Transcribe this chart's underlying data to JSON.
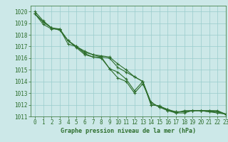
{
  "title": "Graphe pression niveau de la mer (hPa)",
  "bg_color": "#cce8e8",
  "grid_color": "#99cccc",
  "line_color": "#2d6e2d",
  "xlim": [
    -0.5,
    23
  ],
  "ylim": [
    1011,
    1020.5
  ],
  "yticks": [
    1011,
    1012,
    1013,
    1014,
    1015,
    1016,
    1017,
    1018,
    1019,
    1020
  ],
  "xticks": [
    0,
    1,
    2,
    3,
    4,
    5,
    6,
    7,
    8,
    9,
    10,
    11,
    12,
    13,
    14,
    15,
    16,
    17,
    18,
    19,
    20,
    21,
    22,
    23
  ],
  "series": [
    [
      1020.0,
      1019.2,
      1018.6,
      1018.5,
      1017.2,
      1017.0,
      1016.4,
      1016.1,
      1016.1,
      1015.1,
      1014.3,
      1014.0,
      1013.0,
      1013.8,
      1012.2,
      1011.8,
      1011.5,
      1011.3,
      1011.5,
      1011.5,
      1011.5,
      1011.4,
      1011.3,
      1011.2
    ],
    [
      1019.8,
      1019.1,
      1018.6,
      1018.4,
      1017.5,
      1016.9,
      1016.3,
      1016.1,
      1016.0,
      1015.1,
      1014.8,
      1014.2,
      1013.2,
      1014.0,
      1012.0,
      1011.9,
      1011.6,
      1011.3,
      1011.3,
      1011.5,
      1011.5,
      1011.5,
      1011.4,
      1011.2
    ],
    [
      1019.8,
      1019.1,
      1018.6,
      1018.4,
      1017.5,
      1017.0,
      1016.5,
      1016.3,
      1016.2,
      1016.1,
      1015.5,
      1015.0,
      1014.4,
      1014.0,
      1012.2,
      1011.8,
      1011.6,
      1011.4,
      1011.4,
      1011.5,
      1011.5,
      1011.5,
      1011.5,
      1011.2
    ],
    [
      1019.8,
      1018.9,
      1018.5,
      1018.5,
      1017.5,
      1017.0,
      1016.6,
      1016.3,
      1016.1,
      1016.0,
      1015.2,
      1014.8,
      1014.4,
      1014.0,
      1012.0,
      1011.9,
      1011.5,
      1011.4,
      1011.4,
      1011.5,
      1011.5,
      1011.4,
      1011.4,
      1011.2
    ]
  ],
  "figsize": [
    3.2,
    2.0
  ],
  "dpi": 100,
  "tick_fontsize": 5.5,
  "xlabel_fontsize": 6.0,
  "linewidth": 0.8,
  "markersize": 2.5,
  "markeredgewidth": 0.8
}
